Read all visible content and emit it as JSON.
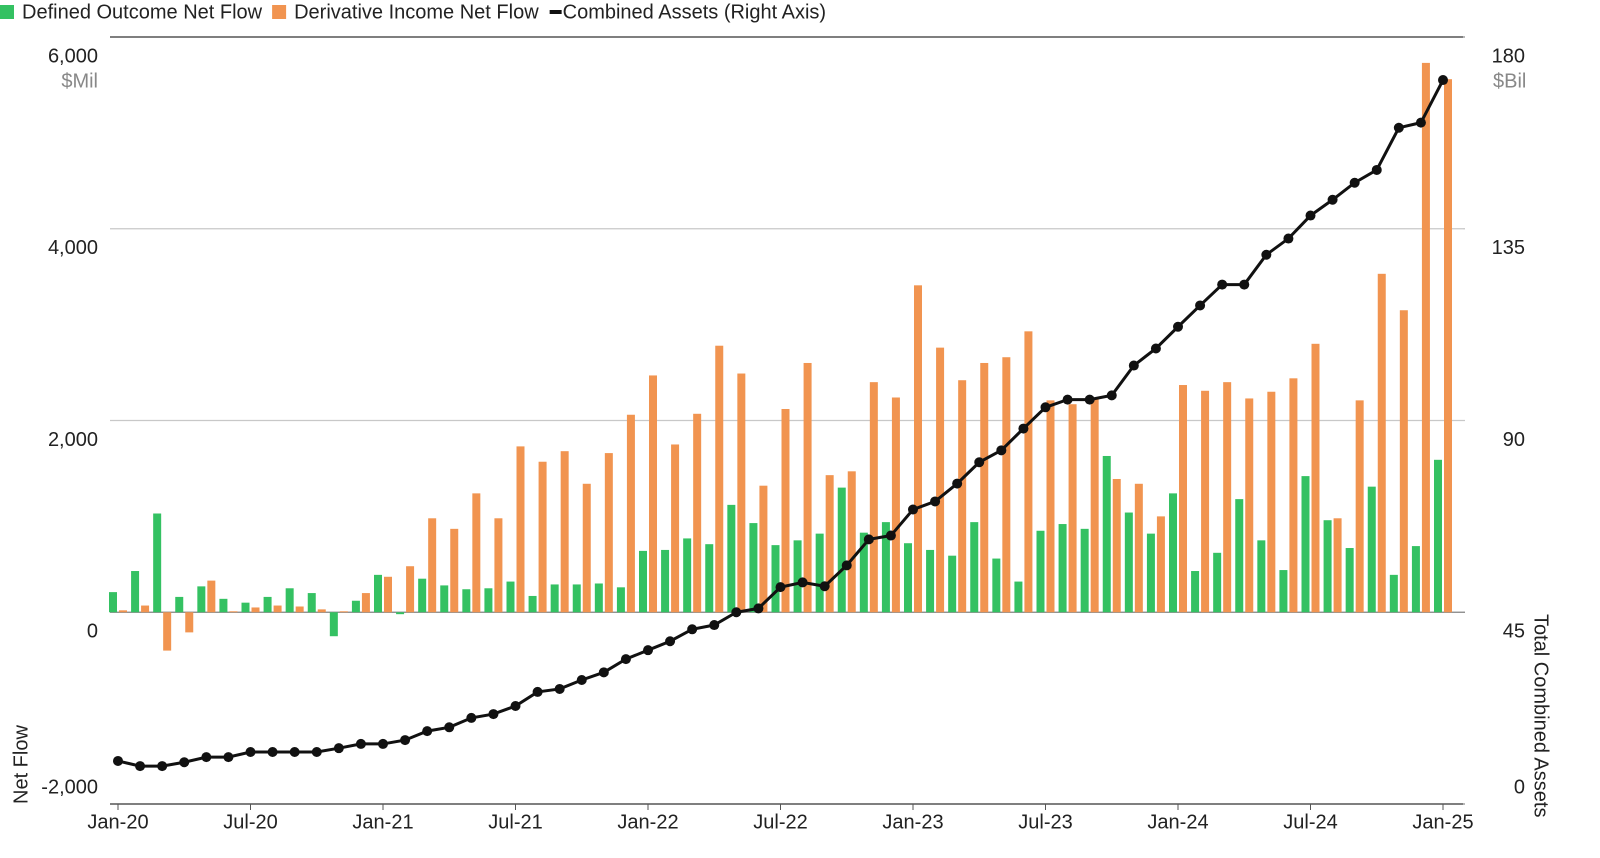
{
  "chart_data": {
    "type": "bar",
    "y_unit": "$Mil",
    "y2_unit": "$Bil",
    "y_label": "Net Flow",
    "y2_label": "Total Combined Assets",
    "categories": [
      "Jan-20",
      null,
      null,
      null,
      null,
      null,
      "Jul-20",
      null,
      null,
      null,
      null,
      null,
      "Jan-21",
      null,
      null,
      null,
      null,
      null,
      "Jul-21",
      null,
      null,
      null,
      null,
      null,
      "Jan-22",
      null,
      null,
      null,
      null,
      null,
      "Jul-22",
      null,
      null,
      null,
      null,
      null,
      "Jan-23",
      null,
      null,
      null,
      null,
      null,
      "Jul-23",
      null,
      null,
      null,
      null,
      null,
      "Jan-24",
      null,
      null,
      null,
      null,
      null,
      "Jul-24",
      null,
      null,
      null,
      null,
      null,
      "Jan-25"
    ],
    "series": [
      {
        "name": "Defined Outcome Net Flow",
        "color": "#34c162",
        "values": [
          210,
          430,
          1030,
          160,
          270,
          140,
          100,
          160,
          250,
          200,
          -250,
          120,
          390,
          -20,
          350,
          280,
          240,
          250,
          320,
          170,
          290,
          290,
          300,
          260,
          640,
          650,
          770,
          710,
          1120,
          930,
          700,
          750,
          820,
          1300,
          830,
          940,
          720,
          650,
          590,
          940,
          560,
          320,
          850,
          920,
          870,
          1630,
          1040,
          820,
          1240,
          430,
          620,
          1180,
          750,
          440,
          1420,
          960,
          670,
          1310,
          390,
          690,
          1590
        ]
      },
      {
        "name": "Derivative Income Net Flow",
        "color": "#f19450",
        "values": [
          20,
          70,
          -400,
          -210,
          330,
          10,
          50,
          70,
          60,
          30,
          10,
          200,
          370,
          480,
          980,
          870,
          1240,
          980,
          1730,
          1570,
          1680,
          1340,
          1660,
          2060,
          2470,
          1750,
          2070,
          2780,
          2490,
          1320,
          2120,
          2600,
          1430,
          1470,
          2400,
          2240,
          3410,
          2760,
          2420,
          2600,
          2660,
          2930,
          2210,
          2170,
          2230,
          1390,
          1340,
          1000,
          2370,
          2310,
          2400,
          2230,
          2300,
          2440,
          2800,
          980,
          2210,
          3530,
          3150,
          5730,
          5560
        ]
      },
      {
        "name": "Combined Assets (Right Axis)",
        "color": "#111111",
        "axis": "y2",
        "type": "line",
        "values": [
          10.1,
          8.9,
          8.9,
          9.8,
          11,
          11,
          12.2,
          12.2,
          12.2,
          12.2,
          13.1,
          14.1,
          14.1,
          15,
          17.1,
          18,
          20.2,
          21.1,
          23,
          26.3,
          27,
          29.1,
          30.9,
          34,
          36.1,
          38.2,
          41,
          42,
          45,
          45.9,
          50.9,
          52,
          51.1,
          56,
          62.1,
          63,
          69.1,
          71,
          75.2,
          80.2,
          83,
          88.1,
          93.1,
          94.9,
          94.9,
          95.9,
          102.9,
          106.9,
          112,
          117,
          121.9,
          121.9,
          128.9,
          132.7,
          138.1,
          141.8,
          145.8,
          148.8,
          158.7,
          159.9,
          169.9
        ]
      }
    ],
    "ylim": [
      -2000,
      6000
    ],
    "yticks": [
      {
        "value": 6000,
        "label": "6,000"
      },
      {
        "value": 4000,
        "label": "4,000"
      },
      {
        "value": 2000,
        "label": "2,000"
      },
      0,
      {
        "value": -2000,
        "label": "-2,000"
      }
    ],
    "y2lim": [
      0,
      180
    ],
    "y2ticks": [
      180,
      135,
      90,
      45,
      0
    ],
    "grid": true,
    "legend": "top-left"
  }
}
